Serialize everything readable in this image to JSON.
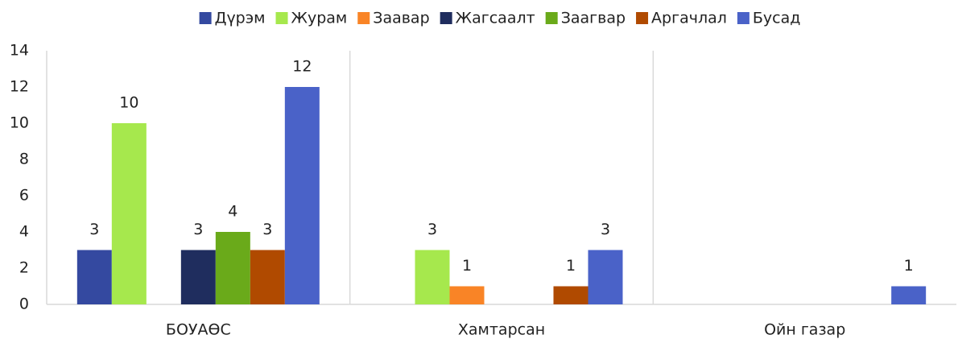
{
  "chart_data": {
    "type": "bar",
    "categories": [
      "БОУАӨС",
      "Хамтарсан",
      "Ойн газар"
    ],
    "series": [
      {
        "name": "Дүрэм",
        "color": "#3449a0",
        "values": [
          3,
          null,
          null
        ]
      },
      {
        "name": "Журам",
        "color": "#a6e84d",
        "values": [
          10,
          3,
          null
        ]
      },
      {
        "name": "Заавар",
        "color": "#f98426",
        "values": [
          null,
          1,
          null
        ]
      },
      {
        "name": "Жагсаалт",
        "color": "#1f2d5e",
        "values": [
          3,
          null,
          null
        ]
      },
      {
        "name": "Заагвар",
        "color": "#6aaa1a",
        "values": [
          4,
          null,
          null
        ]
      },
      {
        "name": "Аргачлал",
        "color": "#b04a00",
        "values": [
          3,
          1,
          null
        ]
      },
      {
        "name": "Бусад",
        "color": "#4a62c8",
        "values": [
          12,
          3,
          1
        ]
      }
    ],
    "ylim": [
      0,
      14
    ],
    "yticks": [
      0,
      2,
      4,
      6,
      8,
      10,
      12,
      14
    ],
    "legend": "top"
  }
}
